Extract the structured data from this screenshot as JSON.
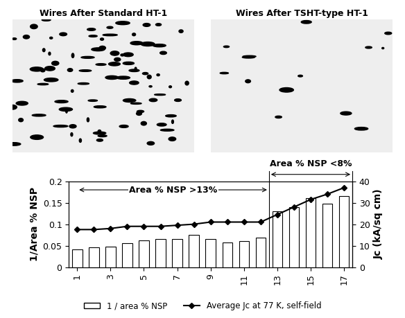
{
  "image_titles": [
    "Wires After Standard HT-1",
    "Wires After TSHT-type HT-1"
  ],
  "chart_data": {
    "type": "bar",
    "x": [
      1,
      2,
      3,
      4,
      5,
      6,
      7,
      8,
      9,
      10,
      11,
      12,
      13,
      14,
      15,
      16,
      17
    ],
    "xlim": [
      0.5,
      17.5
    ],
    "xticks": [
      1,
      3,
      5,
      7,
      9,
      11,
      13,
      15,
      17
    ],
    "y_label": "1/Area % NSP",
    "y2_label": "Jc (kA/sq cm)",
    "ylim": [
      0,
      0.2
    ],
    "yticks": [
      0,
      0.05,
      0.1,
      0.15,
      0.2
    ],
    "y2lim": [
      0,
      40
    ],
    "y2ticks": [
      0,
      10,
      20,
      30,
      40
    ],
    "legend": "lower center",
    "series": [
      {
        "name": "1 / area % NSP",
        "type": "bar",
        "color": "#ffffff",
        "values": [
          0.042,
          0.046,
          0.047,
          0.055,
          0.063,
          0.065,
          0.066,
          0.075,
          0.066,
          0.057,
          0.061,
          0.068,
          0.13,
          0.14,
          0.16,
          0.148,
          0.165
        ]
      },
      {
        "name": "Average Jc at 77 K, self-field",
        "type": "line",
        "axis": "y2",
        "color": "#000000",
        "marker": "diamond",
        "line_style": "solid",
        "values": [
          17.5,
          17.5,
          18,
          19,
          19,
          19,
          19.5,
          20,
          21,
          21,
          21,
          21,
          24.5,
          28,
          31.5,
          34,
          37
        ]
      }
    ],
    "annotations": [
      {
        "text": "Area % NSP >13%",
        "from": 1,
        "to": 12.5
      },
      {
        "text": "Area % NSP <8%",
        "from": 12.5,
        "to": 17.5
      }
    ]
  }
}
